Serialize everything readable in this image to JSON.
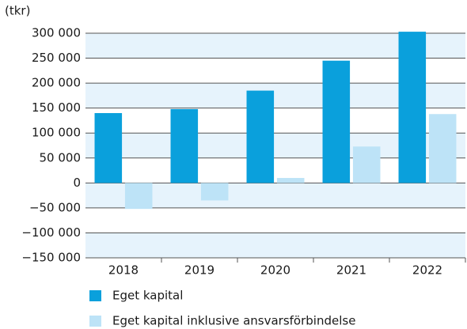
{
  "chart_data": {
    "type": "bar",
    "unit": "(tkr)",
    "categories": [
      "2018",
      "2019",
      "2020",
      "2021",
      "2022"
    ],
    "series": [
      {
        "name": "Eget kapital",
        "color": "#0aa0dc",
        "values": [
          140000,
          148000,
          185000,
          245000,
          303000
        ]
      },
      {
        "name": "Eget kapital inklusive ansvarsförbindelse",
        "color": "#bde3f7",
        "values": [
          -52000,
          -35000,
          10000,
          73000,
          138000
        ]
      }
    ],
    "ylim": [
      -150000,
      300000
    ],
    "yticks": [
      {
        "value": -150000,
        "label": "−150 000"
      },
      {
        "value": -100000,
        "label": "−100 000"
      },
      {
        "value": -50000,
        "label": "−50 000"
      },
      0,
      {
        "value": 50000,
        "label": "50 000"
      },
      {
        "value": 100000,
        "label": "100 000"
      },
      {
        "value": 150000,
        "label": "150 000"
      },
      {
        "value": 200000,
        "label": "200 000"
      },
      {
        "value": 250000,
        "label": "250 000"
      },
      {
        "value": 300000,
        "label": "300 000"
      }
    ],
    "grid": true
  }
}
